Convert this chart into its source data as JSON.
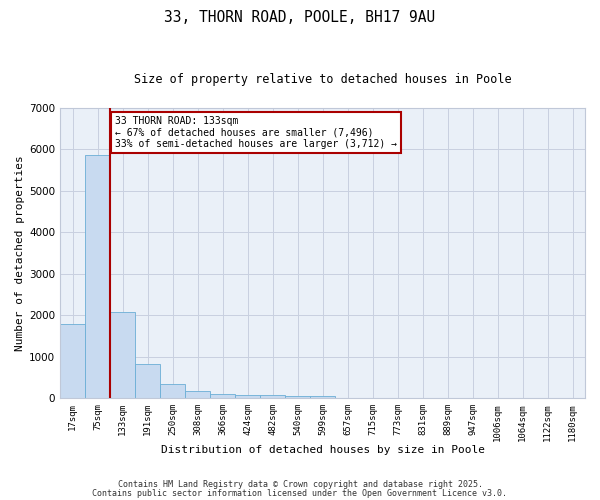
{
  "title": "33, THORN ROAD, POOLE, BH17 9AU",
  "subtitle": "Size of property relative to detached houses in Poole",
  "xlabel": "Distribution of detached houses by size in Poole",
  "ylabel": "Number of detached properties",
  "bar_labels": [
    "17sqm",
    "75sqm",
    "133sqm",
    "191sqm",
    "250sqm",
    "308sqm",
    "366sqm",
    "424sqm",
    "482sqm",
    "540sqm",
    "599sqm",
    "657sqm",
    "715sqm",
    "773sqm",
    "831sqm",
    "889sqm",
    "947sqm",
    "1006sqm",
    "1064sqm",
    "1122sqm",
    "1180sqm"
  ],
  "bar_values": [
    1780,
    5850,
    2080,
    820,
    340,
    180,
    110,
    80,
    80,
    60,
    60,
    0,
    0,
    0,
    0,
    0,
    0,
    0,
    0,
    0,
    0
  ],
  "bar_color": "#c8daf0",
  "bar_edgecolor": "#6baed6",
  "marker_index": 2,
  "marker_color": "#aa0000",
  "ylim": [
    0,
    7000
  ],
  "yticks": [
    0,
    1000,
    2000,
    3000,
    4000,
    5000,
    6000,
    7000
  ],
  "annotation_line1": "33 THORN ROAD: 133sqm",
  "annotation_line2": "← 67% of detached houses are smaller (7,496)",
  "annotation_line3": "33% of semi-detached houses are larger (3,712) →",
  "annotation_box_color": "#aa0000",
  "grid_color": "#c8d0e0",
  "bg_color": "#eaf0f8",
  "footnote1": "Contains HM Land Registry data © Crown copyright and database right 2025.",
  "footnote2": "Contains public sector information licensed under the Open Government Licence v3.0."
}
